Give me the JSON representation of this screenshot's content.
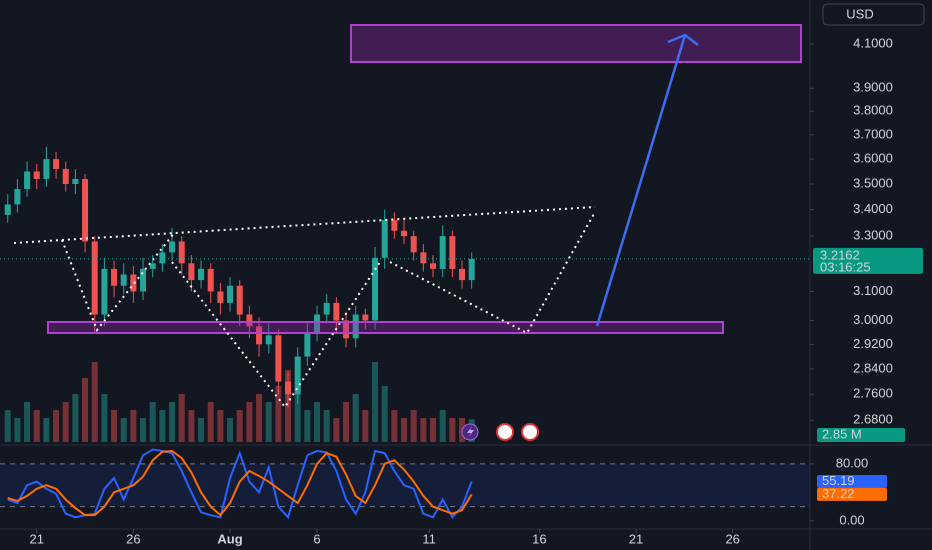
{
  "currency": "USD",
  "chart_data": [
    {
      "type": "candlestick",
      "log_scale": true,
      "grid": false,
      "up_color": "#26a69a",
      "down_color": "#ef5350",
      "xlim": [
        -1.9,
        40
      ],
      "ylim": [
        2.615,
        4.309
      ],
      "xticks": [
        {
          "value": 0,
          "label": "21"
        },
        {
          "value": 5,
          "label": "26"
        },
        {
          "value": 10,
          "label": "Aug"
        },
        {
          "value": 14.5,
          "label": "6"
        },
        {
          "value": 20.3,
          "label": "11"
        },
        {
          "value": 26,
          "label": "16"
        },
        {
          "value": 31,
          "label": "21"
        },
        {
          "value": 36,
          "label": "26"
        }
      ],
      "yticks": [
        {
          "value": 4.1,
          "label": "4.1000"
        },
        {
          "value": 3.9,
          "label": "3.9000"
        },
        {
          "value": 3.8,
          "label": "3.8000"
        },
        {
          "value": 3.7,
          "label": "3.7000"
        },
        {
          "value": 3.6,
          "label": "3.6000"
        },
        {
          "value": 3.5,
          "label": "3.5000"
        },
        {
          "value": 3.4,
          "label": "3.4000"
        },
        {
          "value": 3.3,
          "label": "3.3000"
        },
        {
          "value": 3.1,
          "label": "3.1000"
        },
        {
          "value": 3.0,
          "label": "3.0000"
        },
        {
          "value": 2.92,
          "label": "2.9200"
        },
        {
          "value": 2.84,
          "label": "2.8400"
        },
        {
          "value": 2.76,
          "label": "2.7600"
        },
        {
          "value": 2.68,
          "label": "2.6800"
        }
      ],
      "x": [
        -1.5,
        -1,
        -0.5,
        0,
        0.5,
        1,
        1.5,
        2,
        2.5,
        3,
        3.5,
        4,
        4.5,
        5,
        5.5,
        6,
        6.5,
        7,
        7.5,
        8,
        8.5,
        9,
        9.5,
        10,
        10.5,
        11,
        11.5,
        12,
        12.5,
        13,
        13.5,
        14,
        14.5,
        15,
        15.5,
        16,
        16.5,
        17,
        17.5,
        18,
        18.5,
        19,
        19.5,
        20,
        20.5,
        21,
        21.5,
        22,
        22.5
      ],
      "open": [
        3.38,
        3.42,
        3.48,
        3.55,
        3.52,
        3.6,
        3.56,
        3.5,
        3.52,
        3.28,
        3.02,
        3.18,
        3.12,
        3.16,
        3.1,
        3.18,
        3.2,
        3.24,
        3.28,
        3.2,
        3.14,
        3.18,
        3.1,
        3.06,
        3.12,
        3.02,
        2.98,
        2.92,
        2.95,
        2.8,
        2.76,
        2.88,
        2.96,
        3.02,
        3.06,
        3.0,
        2.94,
        3.02,
        3.0,
        3.22,
        3.36,
        3.32,
        3.3,
        3.24,
        3.2,
        3.18,
        3.3,
        3.18,
        3.14
      ],
      "high": [
        3.46,
        3.52,
        3.59,
        3.58,
        3.65,
        3.63,
        3.59,
        3.56,
        3.54,
        3.3,
        3.22,
        3.21,
        3.2,
        3.19,
        3.22,
        3.23,
        3.27,
        3.33,
        3.3,
        3.23,
        3.21,
        3.2,
        3.13,
        3.15,
        3.14,
        3.05,
        3.01,
        2.99,
        2.97,
        2.83,
        2.91,
        2.99,
        3.05,
        3.09,
        3.08,
        3.03,
        3.05,
        3.04,
        3.26,
        3.4,
        3.39,
        3.36,
        3.32,
        3.27,
        3.23,
        3.34,
        3.32,
        3.21,
        3.24
      ],
      "low": [
        3.35,
        3.39,
        3.45,
        3.48,
        3.49,
        3.52,
        3.47,
        3.46,
        3.24,
        2.96,
        2.98,
        3.08,
        3.09,
        3.06,
        3.07,
        3.15,
        3.17,
        3.21,
        3.16,
        3.1,
        3.11,
        3.06,
        3.02,
        3.03,
        2.98,
        2.94,
        2.88,
        2.89,
        2.76,
        2.72,
        2.73,
        2.85,
        2.93,
        2.99,
        2.96,
        2.91,
        2.91,
        2.97,
        2.97,
        3.18,
        3.29,
        3.27,
        3.21,
        3.17,
        3.15,
        3.15,
        3.15,
        3.11,
        3.11
      ],
      "close": [
        3.42,
        3.48,
        3.55,
        3.52,
        3.6,
        3.56,
        3.5,
        3.52,
        3.28,
        3.02,
        3.18,
        3.12,
        3.16,
        3.1,
        3.18,
        3.2,
        3.24,
        3.28,
        3.2,
        3.14,
        3.18,
        3.1,
        3.06,
        3.12,
        3.02,
        2.98,
        2.92,
        2.95,
        2.8,
        2.76,
        2.88,
        2.96,
        3.02,
        3.06,
        3.0,
        2.94,
        3.02,
        3.0,
        3.22,
        3.36,
        3.32,
        3.3,
        3.24,
        3.2,
        3.18,
        3.3,
        3.18,
        3.14,
        3.2162
      ],
      "countdown": "03:16:25",
      "volume": {
        "values": [
          4,
          3,
          5,
          4,
          3,
          4,
          5,
          6,
          8,
          10,
          6,
          4,
          3,
          4,
          3,
          5,
          4,
          5,
          6,
          4,
          3,
          5,
          4,
          3,
          4,
          5,
          6,
          5,
          7,
          9,
          6,
          4,
          5,
          4,
          3,
          5,
          6,
          4,
          10,
          7,
          4,
          3,
          4,
          3,
          3,
          4,
          3,
          3,
          2.85
        ],
        "last_value_label": "2.85 M"
      }
    },
    {
      "type": "line",
      "xlim": [
        -1.9,
        40
      ],
      "ylim": [
        -10,
        105
      ],
      "yticks": [
        {
          "value": 80,
          "label": "80.00"
        },
        {
          "value": 0,
          "label": "0.00"
        }
      ],
      "bands": [
        20,
        80
      ],
      "x": [
        -1.5,
        -1,
        -0.5,
        0,
        0.5,
        1,
        1.5,
        2,
        2.5,
        3,
        3.5,
        4,
        4.5,
        5,
        5.5,
        6,
        6.5,
        7,
        7.5,
        8,
        8.5,
        9,
        9.5,
        10,
        10.5,
        11,
        11.5,
        12,
        12.5,
        13,
        13.5,
        14,
        14.5,
        15,
        15.5,
        16,
        16.5,
        17,
        17.5,
        18,
        18.5,
        19,
        19.5,
        20,
        20.5,
        21,
        21.5,
        22,
        22.5
      ],
      "series": [
        {
          "color": "#2962ff",
          "values": [
            30,
            25,
            50,
            55,
            45,
            38,
            10,
            5,
            8,
            10,
            45,
            60,
            30,
            60,
            92,
            100,
            98,
            95,
            70,
            40,
            12,
            8,
            5,
            60,
            95,
            55,
            40,
            75,
            20,
            5,
            50,
            92,
            98,
            96,
            70,
            30,
            10,
            40,
            98,
            95,
            70,
            50,
            45,
            10,
            5,
            30,
            5,
            20,
            55.19
          ]
        },
        {
          "color": "#ff6d00",
          "values": [
            32,
            28,
            35,
            45,
            50,
            45,
            30,
            18,
            8,
            8,
            20,
            40,
            45,
            50,
            62,
            85,
            97,
            98,
            88,
            68,
            40,
            20,
            8,
            25,
            55,
            70,
            63,
            55,
            45,
            35,
            25,
            50,
            80,
            95,
            90,
            65,
            35,
            25,
            50,
            80,
            85,
            72,
            55,
            35,
            20,
            15,
            10,
            15,
            37.22
          ]
        }
      ]
    }
  ]
}
